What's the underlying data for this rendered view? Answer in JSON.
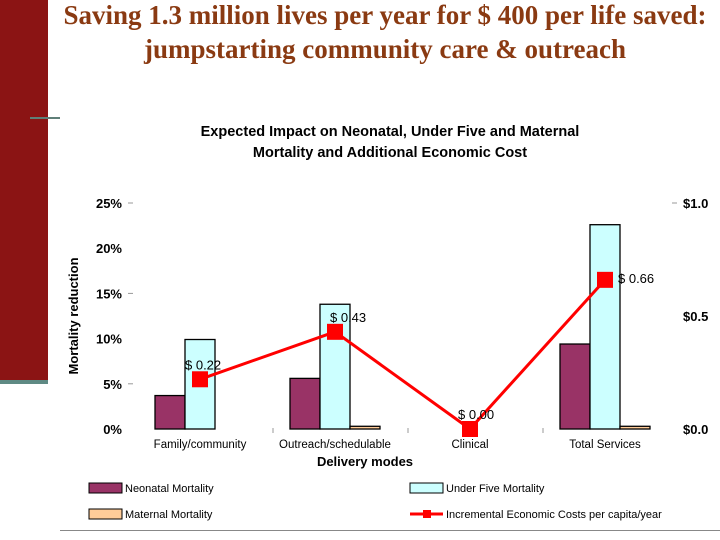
{
  "slide": {
    "title": "Saving 1.3 million lives per year for $ 400 per life saved: jumpstarting community care & outreach"
  },
  "chart_data": {
    "type": "bar",
    "title_lines": [
      "Expected Impact on Neonatal, Under Five and Maternal",
      "Mortality and Additional Economic Cost"
    ],
    "xlabel": "Delivery modes",
    "ylabel": "Mortality reduction",
    "categories": [
      "Family/community",
      "Outreach/schedulable",
      "Clinical",
      "Total Services"
    ],
    "ylim": [
      0,
      25
    ],
    "yticks": [
      {
        "value": 25,
        "label": "25%"
      },
      {
        "value": 20,
        "label": "20%"
      },
      {
        "value": 15,
        "label": "15%"
      },
      {
        "value": 10,
        "label": "10%"
      },
      {
        "value": 5,
        "label": "5%"
      },
      {
        "value": 0,
        "label": "0%"
      }
    ],
    "y2lim": [
      0,
      1.0
    ],
    "y2ticks": [
      {
        "value": 1.0,
        "label": "$1.0"
      },
      {
        "value": 0.5,
        "label": "$0.5"
      },
      {
        "value": 0.0,
        "label": "$0.0"
      }
    ],
    "series": [
      {
        "name": "Neonatal Mortality",
        "kind": "bar",
        "color": "#993366",
        "values": [
          3.7,
          5.6,
          0,
          9.4
        ]
      },
      {
        "name": "Under Five Mortality",
        "kind": "bar",
        "color": "#ccffff",
        "values": [
          9.9,
          13.8,
          0,
          22.6
        ]
      },
      {
        "name": "Maternal Mortality",
        "kind": "bar",
        "color": "#ffcc99",
        "values": [
          0,
          0.3,
          0,
          0.3
        ]
      },
      {
        "name": "Incremental Economic Costs per capita/year",
        "kind": "line",
        "axis": "right",
        "color": "#ff0000",
        "values": [
          0.22,
          0.43,
          0.0,
          0.66
        ],
        "labels": [
          "$ 0.22",
          "$ 0.43",
          "$ 0.00",
          "$ 0.66"
        ]
      }
    ],
    "legend": {
      "placement": "bottom",
      "items": [
        "Neonatal Mortality",
        "Under Five Mortality",
        "Maternal Mortality",
        "Incremental Economic Costs per capita/year"
      ]
    },
    "grid": false
  }
}
